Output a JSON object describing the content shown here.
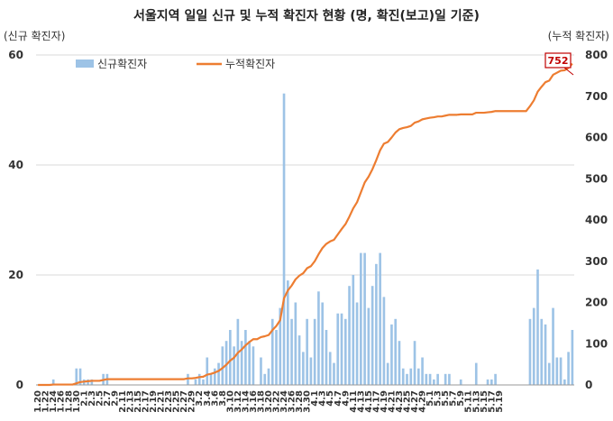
{
  "chart_data": {
    "type": "bar+line",
    "title": "서울지역 일일 신규 및 누적 확진자 현황 (명, 확진(보고)일 기준)",
    "ylabel_left": "(신규 확진자)",
    "ylabel_right": "(누적 확진자)",
    "ylim_left": [
      0,
      60
    ],
    "ylim_right": [
      0,
      800
    ],
    "yticks_left": [
      "0",
      "20",
      "40",
      "60"
    ],
    "yticks_right": [
      "0",
      "100",
      "200",
      "300",
      "400",
      "500",
      "600",
      "700",
      "800"
    ],
    "legend": {
      "placement": "top-left",
      "bar_label": "신규확진자",
      "line_label": "누적확진자"
    },
    "grid": "horizontal",
    "colors": {
      "bar": "#9dc3e6",
      "line": "#ed7d31",
      "callout_border": "#c00000",
      "callout_text": "#c00000"
    },
    "callout": "752",
    "xticklabels": [
      "1.20",
      "1.22",
      "1.24",
      "1.26",
      "1.28",
      "1.30",
      "2.1",
      "2.3",
      "2.5",
      "2.7",
      "2.9",
      "2.11",
      "2.13",
      "2.15",
      "2.17",
      "2.19",
      "2.21",
      "2.23",
      "2.25",
      "2.27",
      "2.29",
      "3.2",
      "3.4",
      "3.6",
      "3.8",
      "3.10",
      "3.12",
      "3.14",
      "3.16",
      "3.18",
      "3.20",
      "3.22",
      "3.24",
      "3.26",
      "3.28",
      "3.30",
      "4.1",
      "4.3",
      "4.5",
      "4.7",
      "4.9",
      "4.11",
      "4.13",
      "4.15",
      "4.17",
      "4.19",
      "4.21",
      "4.23",
      "4.25",
      "4.27",
      "4.29",
      "5.1",
      "5.3",
      "5.5",
      "5.7",
      "5.9",
      "5.11",
      "5.13",
      "5.15",
      "5.17",
      "5.19"
    ],
    "new_cases": [
      0,
      0,
      0,
      0,
      1,
      0,
      0,
      0,
      0,
      0,
      3,
      3,
      1,
      1,
      1,
      0,
      0,
      2,
      2,
      0,
      0,
      0,
      0,
      0,
      0,
      0,
      0,
      0,
      0,
      0,
      0,
      0,
      0,
      0,
      0,
      0,
      0,
      0,
      0,
      2,
      0,
      1,
      2,
      1,
      5,
      2,
      3,
      4,
      7,
      8,
      10,
      7,
      12,
      8,
      10,
      8,
      7,
      0,
      5,
      2,
      3,
      12,
      10,
      14,
      53,
      19,
      12,
      15,
      9,
      6,
      12,
      5,
      12,
      17,
      15,
      10,
      6,
      4,
      13,
      13,
      12,
      18,
      20,
      15,
      24,
      24,
      14,
      18,
      22,
      24,
      16,
      4,
      11,
      12,
      8,
      3,
      2,
      3,
      8,
      3,
      5,
      2,
      2,
      1,
      2,
      0,
      2,
      2,
      0,
      0,
      1,
      0,
      0,
      0,
      4,
      0,
      0,
      1,
      1,
      2,
      0,
      0,
      0,
      0,
      0,
      0,
      0,
      0,
      12,
      14,
      21,
      12,
      11,
      4,
      14,
      5,
      5,
      1,
      6,
      10
    ],
    "cumulative": [
      0,
      0,
      0,
      0,
      1,
      1,
      1,
      1,
      1,
      1,
      4,
      7,
      8,
      9,
      10,
      10,
      10,
      12,
      14,
      14,
      14,
      14,
      14,
      14,
      14,
      14,
      14,
      14,
      14,
      14,
      14,
      14,
      14,
      14,
      14,
      14,
      14,
      14,
      14,
      16,
      16,
      17,
      19,
      20,
      25,
      27,
      30,
      34,
      41,
      49,
      59,
      66,
      78,
      86,
      96,
      104,
      111,
      111,
      116,
      118,
      121,
      133,
      143,
      157,
      210,
      229,
      241,
      256,
      265,
      271,
      283,
      288,
      300,
      317,
      332,
      342,
      348,
      352,
      365,
      378,
      390,
      408,
      428,
      443,
      467,
      491,
      505,
      523,
      545,
      569,
      585,
      589,
      600,
      612,
      620,
      623,
      625,
      628,
      636,
      639,
      644,
      646,
      648,
      649,
      651,
      651,
      653,
      655,
      655,
      655,
      656,
      656,
      656,
      656,
      660,
      660,
      660,
      661,
      662,
      664,
      664,
      664,
      664,
      664,
      664,
      664,
      664,
      664,
      676,
      690,
      711,
      723,
      734,
      738,
      752,
      757,
      762,
      763,
      769,
      779
    ]
  }
}
